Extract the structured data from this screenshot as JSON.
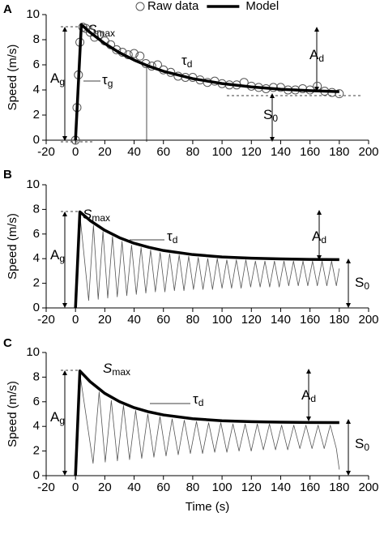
{
  "chart_data": [
    {
      "type": "line",
      "panel": "A",
      "ylabel": "Speed (m/s)",
      "xlim": [
        -20,
        200
      ],
      "xticks": [
        -20,
        0,
        20,
        40,
        60,
        80,
        100,
        120,
        140,
        160,
        180,
        200
      ],
      "ylim": [
        0,
        10
      ],
      "yticks": [
        0,
        2,
        4,
        6,
        8,
        10
      ],
      "series": [
        {
          "name": "Raw data",
          "color": "#555555",
          "style": "markers",
          "line_width": 1,
          "x": [
            0,
            1,
            2,
            3,
            5,
            7,
            10,
            13,
            16,
            20,
            24,
            28,
            32,
            36,
            40,
            44,
            48,
            52,
            56,
            60,
            65,
            70,
            75,
            80,
            85,
            90,
            95,
            100,
            105,
            110,
            115,
            120,
            125,
            130,
            135,
            140,
            145,
            150,
            155,
            160,
            165,
            170,
            175,
            180
          ],
          "values": [
            0,
            2.6,
            5.2,
            7.8,
            9.0,
            8.9,
            8.6,
            8.2,
            8.4,
            7.9,
            7.6,
            7.2,
            7.0,
            6.8,
            6.9,
            6.7,
            6.1,
            5.9,
            6.0,
            5.6,
            5.4,
            5.1,
            5.0,
            5.0,
            4.8,
            4.6,
            4.7,
            4.5,
            4.4,
            4.4,
            4.6,
            4.3,
            4.2,
            4.1,
            4.2,
            4.2,
            4.0,
            4.0,
            4.1,
            4.0,
            4.3,
            3.9,
            3.8,
            3.7
          ]
        },
        {
          "name": "Model",
          "color": "#000000",
          "style": "line",
          "line_width": 3.5,
          "x": [
            0,
            4,
            10,
            20,
            30,
            40,
            50,
            60,
            80,
            100,
            120,
            140,
            160,
            180
          ],
          "values": [
            0,
            9.2,
            8.58,
            7.69,
            6.97,
            6.38,
            5.89,
            5.49,
            4.9,
            4.51,
            4.24,
            4.06,
            3.94,
            3.86
          ]
        }
      ],
      "annotations": {
        "smax": {
          "text": "S",
          "sub": "max"
        },
        "tau_d": {
          "text": "τ",
          "sub": "d"
        },
        "a_g": {
          "text": "A",
          "sub": "g"
        },
        "tau_g": {
          "text": "τ",
          "sub": "g"
        },
        "a_d": {
          "text": "A",
          "sub": "d"
        },
        "s_0": {
          "text": "S",
          "sub": "0"
        }
      }
    },
    {
      "type": "line",
      "panel": "B",
      "ylabel": "Speed (m/s)",
      "xlim": [
        -20,
        200
      ],
      "xticks": [
        -20,
        0,
        20,
        40,
        60,
        80,
        100,
        120,
        140,
        160,
        180,
        200
      ],
      "ylim": [
        0,
        10
      ],
      "yticks": [
        0,
        2,
        4,
        6,
        8,
        10
      ],
      "series": [
        {
          "color": "#555555",
          "style": "line",
          "line_width": 0.8,
          "x": [
            0,
            3,
            9,
            12.25,
            15.5,
            18.75,
            22,
            25.25,
            28.5,
            31.75,
            35,
            38.25,
            41.5,
            44.75,
            48,
            51.25,
            54.5,
            57.75,
            61,
            64.25,
            67.5,
            70.75,
            74,
            77.25,
            80.5,
            83.75,
            87,
            90.25,
            93.5,
            96.75,
            100,
            103.25,
            106.5,
            109.75,
            113,
            116.25,
            119.5,
            122.75,
            126,
            129.25,
            132.5,
            135.75,
            139,
            142.25,
            145.5,
            148.75,
            152,
            155.25,
            158.5,
            161.75,
            165,
            168.25,
            171.5,
            174.75,
            178,
            180
          ],
          "values": [
            0,
            7.6,
            0.6,
            6.7,
            0.7,
            6.2,
            0.8,
            5.8,
            0.9,
            5.4,
            1.0,
            5.1,
            1.1,
            4.9,
            1.2,
            4.7,
            1.3,
            4.5,
            1.3,
            4.4,
            1.4,
            4.3,
            1.4,
            4.2,
            1.5,
            4.1,
            1.5,
            4.0,
            1.5,
            4.0,
            1.6,
            3.9,
            1.6,
            3.9,
            1.6,
            3.9,
            1.7,
            3.8,
            1.7,
            3.8,
            1.7,
            3.8,
            1.7,
            3.8,
            1.8,
            3.8,
            1.8,
            3.8,
            1.8,
            3.8,
            1.8,
            3.8,
            1.8,
            3.8,
            1.8,
            3.2
          ]
        },
        {
          "color": "#000000",
          "style": "line",
          "line_width": 3.5,
          "x": [
            0,
            3,
            10,
            20,
            30,
            40,
            50,
            60,
            80,
            100,
            120,
            140,
            160,
            180
          ],
          "values": [
            0,
            7.8,
            7.09,
            6.3,
            5.7,
            5.25,
            4.92,
            4.66,
            4.33,
            4.14,
            4.04,
            3.98,
            3.94,
            3.92
          ]
        }
      ],
      "annotations": {
        "smax": {
          "text": "S",
          "sub": "max"
        },
        "tau_d": {
          "text": "τ",
          "sub": "d"
        },
        "a_g": {
          "text": "A",
          "sub": "g"
        },
        "a_d": {
          "text": "A",
          "sub": "d"
        },
        "s_0": {
          "text": "S",
          "sub": "0"
        }
      }
    },
    {
      "type": "line",
      "panel": "C",
      "ylabel": "Speed (m/s)",
      "xlabel": "Time (s)",
      "xlim": [
        -20,
        200
      ],
      "xticks": [
        -20,
        0,
        20,
        40,
        60,
        80,
        100,
        120,
        140,
        160,
        180,
        200
      ],
      "ylim": [
        0,
        10
      ],
      "yticks": [
        0,
        2,
        4,
        6,
        8,
        10
      ],
      "series": [
        {
          "color": "#555555",
          "style": "line",
          "line_width": 0.8,
          "x": [
            0,
            3,
            12,
            16.15,
            20.3,
            24.45,
            28.6,
            32.75,
            36.9,
            41.05,
            45.2,
            49.35,
            53.5,
            57.65,
            61.8,
            65.95,
            70.1,
            74.25,
            78.4,
            82.55,
            86.7,
            90.85,
            95,
            99.15,
            103.3,
            107.45,
            111.6,
            115.75,
            119.9,
            124.05,
            128.2,
            132.35,
            136.5,
            140.65,
            144.8,
            148.95,
            153.1,
            157.25,
            161.4,
            165.55,
            169.7,
            173.85,
            178,
            180
          ],
          "values": [
            0,
            8.3,
            1.0,
            6.8,
            1.1,
            6.1,
            1.2,
            5.7,
            1.3,
            5.3,
            1.4,
            5.0,
            1.5,
            4.8,
            1.6,
            4.6,
            1.7,
            4.5,
            1.8,
            4.4,
            1.8,
            4.3,
            1.9,
            4.3,
            1.9,
            4.2,
            2.0,
            4.2,
            2.0,
            4.2,
            2.1,
            4.2,
            2.1,
            4.1,
            2.1,
            4.1,
            2.2,
            4.1,
            2.2,
            4.1,
            2.2,
            4.1,
            2.2,
            0.5
          ]
        },
        {
          "color": "#000000",
          "style": "line",
          "line_width": 3.5,
          "x": [
            0,
            3,
            10,
            20,
            30,
            40,
            50,
            60,
            80,
            100,
            120,
            140,
            160,
            180
          ],
          "values": [
            0,
            8.5,
            7.63,
            6.68,
            6.01,
            5.52,
            5.18,
            4.93,
            4.62,
            4.46,
            4.38,
            4.34,
            4.32,
            4.31
          ]
        }
      ],
      "annotations": {
        "smax": {
          "text": "S",
          "sub": "max"
        },
        "tau_d": {
          "text": "τ",
          "sub": "d"
        },
        "a_g": {
          "text": "A",
          "sub": "g"
        },
        "a_d": {
          "text": "A",
          "sub": "d"
        },
        "s_0": {
          "text": "S",
          "sub": "0"
        }
      }
    }
  ]
}
